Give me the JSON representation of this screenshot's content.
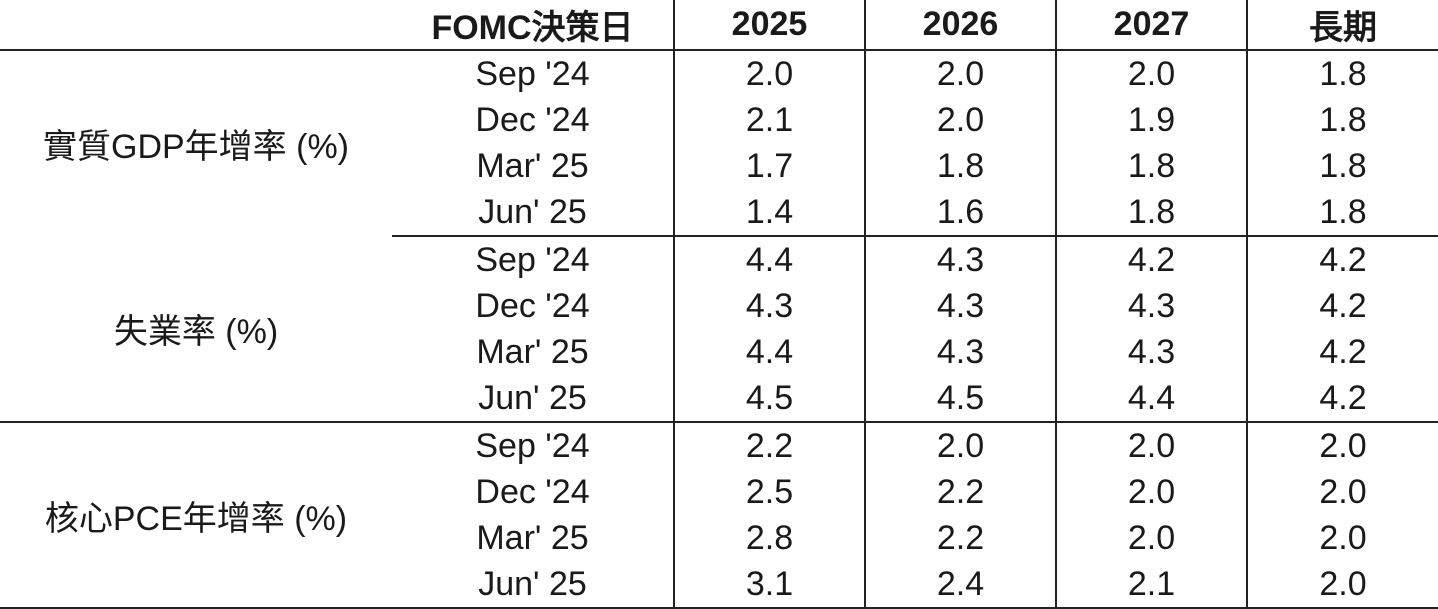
{
  "header": {
    "label": "",
    "date_col": "FOMC決策日",
    "years": [
      "2025",
      "2026",
      "2027",
      "長期"
    ]
  },
  "groups": [
    {
      "metric": "實質GDP年增率 (%)",
      "rows": [
        {
          "date": "Sep '24",
          "values": [
            "2.0",
            "2.0",
            "2.0",
            "1.8"
          ]
        },
        {
          "date": "Dec '24",
          "values": [
            "2.1",
            "2.0",
            "1.9",
            "1.8"
          ]
        },
        {
          "date": "Mar' 25",
          "values": [
            "1.7",
            "1.8",
            "1.8",
            "1.8"
          ]
        },
        {
          "date": "Jun' 25",
          "values": [
            "1.4",
            "1.6",
            "1.8",
            "1.8"
          ]
        }
      ]
    },
    {
      "metric": "失業率 (%)",
      "rows": [
        {
          "date": "Sep '24",
          "values": [
            "4.4",
            "4.3",
            "4.2",
            "4.2"
          ]
        },
        {
          "date": "Dec '24",
          "values": [
            "4.3",
            "4.3",
            "4.3",
            "4.2"
          ]
        },
        {
          "date": "Mar' 25",
          "values": [
            "4.4",
            "4.3",
            "4.3",
            "4.2"
          ]
        },
        {
          "date": "Jun' 25",
          "values": [
            "4.5",
            "4.5",
            "4.4",
            "4.2"
          ]
        }
      ]
    },
    {
      "metric": "核心PCE年增率 (%)",
      "rows": [
        {
          "date": "Sep '24",
          "values": [
            "2.2",
            "2.0",
            "2.0",
            "2.0"
          ]
        },
        {
          "date": "Dec '24",
          "values": [
            "2.5",
            "2.2",
            "2.0",
            "2.0"
          ]
        },
        {
          "date": "Mar' 25",
          "values": [
            "2.8",
            "2.2",
            "2.0",
            "2.0"
          ]
        },
        {
          "date": "Jun' 25",
          "values": [
            "3.1",
            "2.4",
            "2.1",
            "2.0"
          ]
        }
      ]
    }
  ]
}
